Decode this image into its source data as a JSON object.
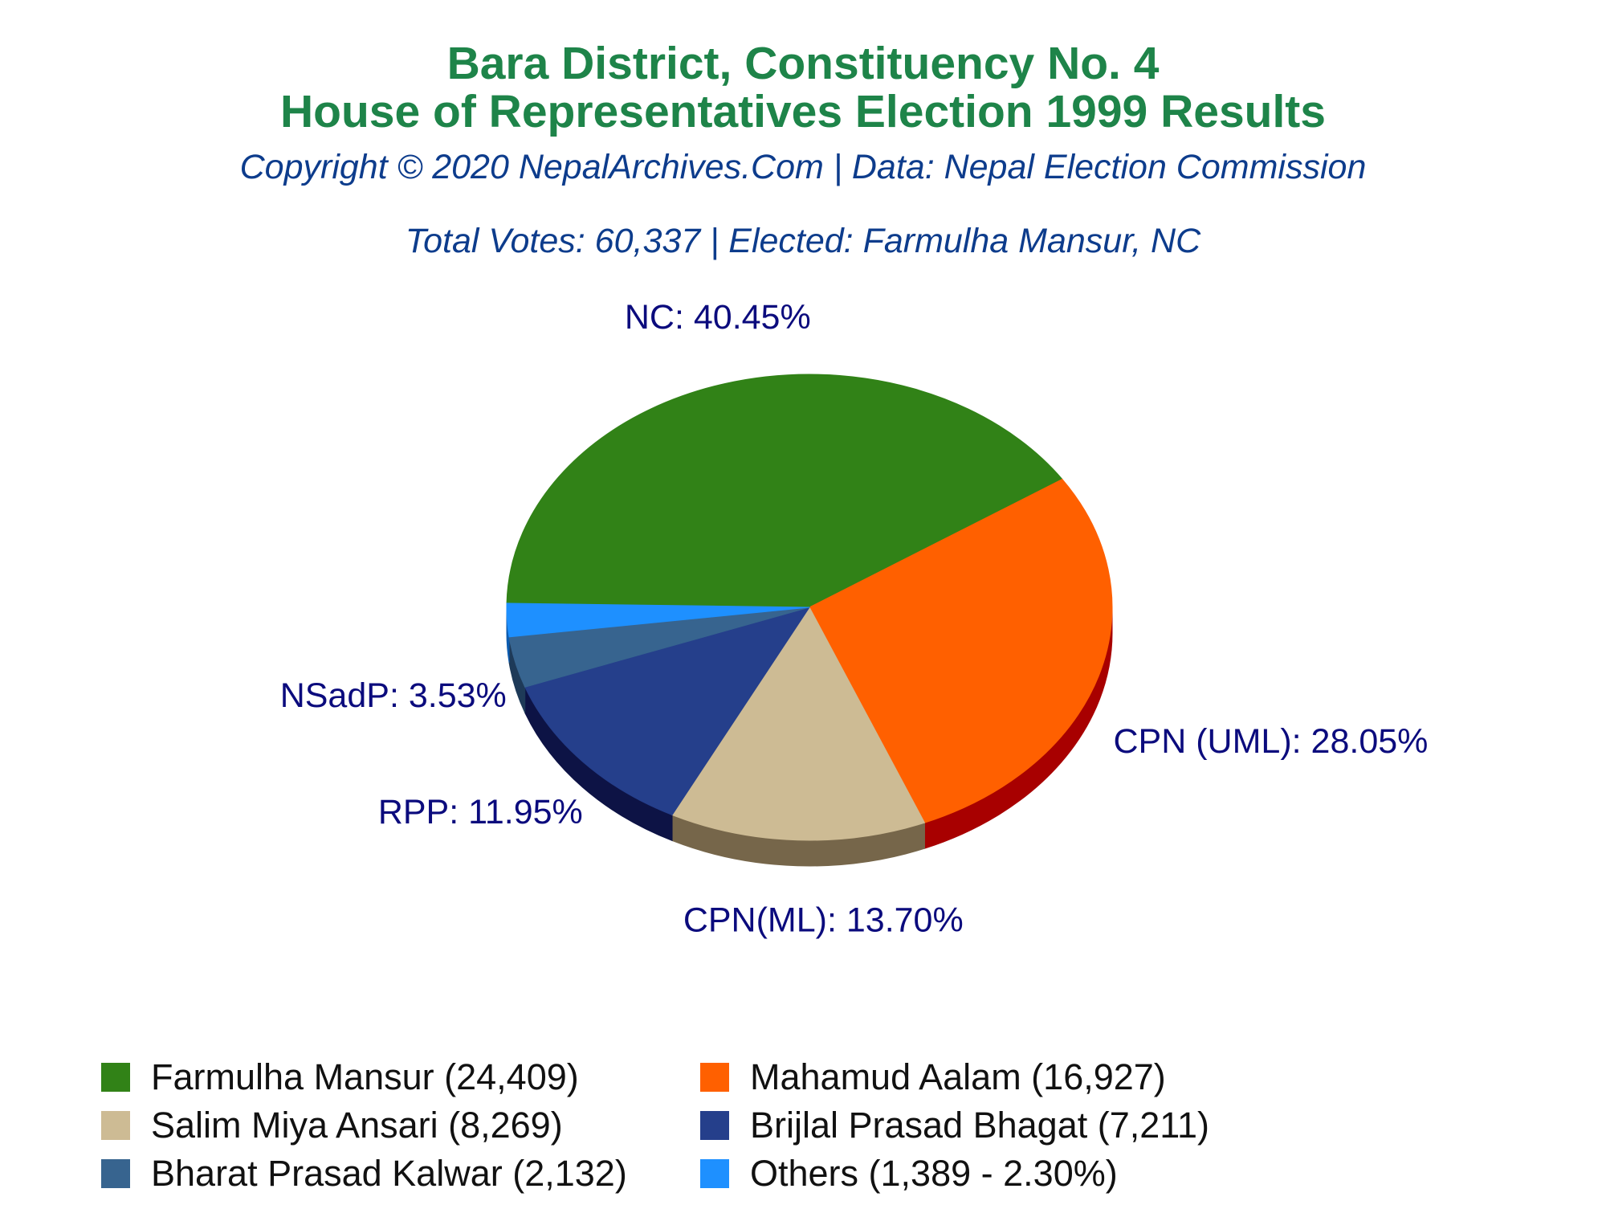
{
  "header": {
    "title_line1": "Bara District, Constituency No. 4",
    "title_line2": "House of Representatives Election 1999 Results",
    "copyright": "Copyright © 2020 NepalArchives.Com | Data: Nepal Election Commission",
    "summary": "Total Votes: 60,337 | Elected: Farmulha Mansur, NC"
  },
  "chart_data": {
    "type": "pie",
    "slices": [
      {
        "party": "NC",
        "candidate": "Farmulha Mansur",
        "votes": 24409,
        "percent": 40.45,
        "slice_label": "NC: 40.45%",
        "legend_label": "Farmulha Mansur (24,409)",
        "color": "#318217",
        "side_color": "#1f5a0e"
      },
      {
        "party": "CPN (UML)",
        "candidate": "Mahamud Aalam",
        "votes": 16927,
        "percent": 28.05,
        "slice_label": "CPN (UML): 28.05%",
        "legend_label": "Mahamud Aalam (16,927)",
        "color": "#ff6000",
        "side_color": "#a80000"
      },
      {
        "party": "CPN(ML)",
        "candidate": "Salim Miya Ansari",
        "votes": 8269,
        "percent": 13.7,
        "slice_label": "CPN(ML): 13.70%",
        "legend_label": "Salim Miya Ansari (8,269)",
        "color": "#cdbb94",
        "side_color": "#76664a"
      },
      {
        "party": "RPP",
        "candidate": "Brijlal Prasad Bhagat",
        "votes": 7211,
        "percent": 11.95,
        "slice_label": "RPP: 11.95%",
        "legend_label": "Brijlal Prasad Bhagat (7,211)",
        "color": "#253f8b",
        "side_color": "#0d1345"
      },
      {
        "party": "NSadP",
        "candidate": "Bharat Prasad Kalwar",
        "votes": 2132,
        "percent": 3.53,
        "slice_label": "NSadP: 3.53%",
        "legend_label": "Bharat Prasad Kalwar (2,132)",
        "color": "#37648f",
        "side_color": "#1e3a58"
      },
      {
        "party": "Others",
        "candidate": "Others",
        "votes": 1389,
        "percent": 2.3,
        "slice_label": "",
        "legend_label": "Others (1,389 - 2.30%)",
        "color": "#1e90ff",
        "side_color": "#0d5cb0"
      }
    ],
    "legend_placement": "bottom",
    "label_color": "#0b0b7d"
  }
}
